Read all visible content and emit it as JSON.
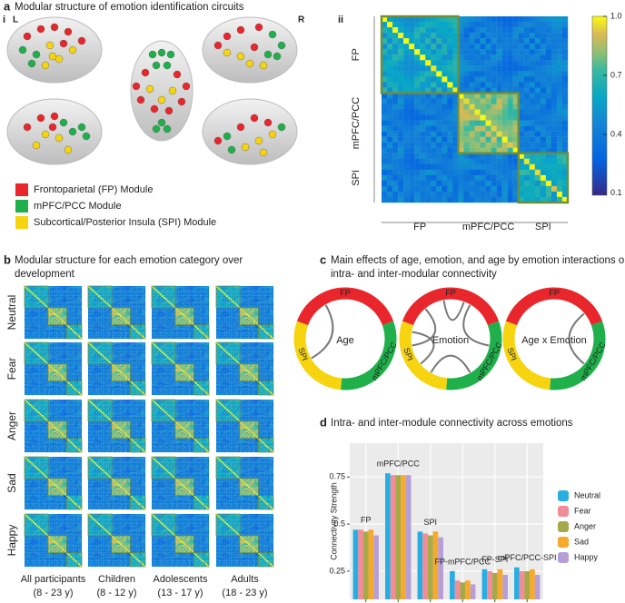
{
  "panel_a": {
    "letter": "a",
    "title": "Modular structure of emotion identification circuits",
    "sub_i": "i",
    "left": "L",
    "right": "R",
    "sub_ii": "ii",
    "legend": [
      "Frontoparietal (FP) Module",
      "mPFC/PCC Module",
      "Subcortical/Posterior Insula (SPI) Module"
    ],
    "modules": [
      "FP",
      "mPFC/PCC",
      "SPI"
    ],
    "colorbar": {
      "lim": [
        0.09,
        1
      ],
      "ticks": [
        {
          "value": 1,
          "label": "1.0"
        },
        0.7,
        0.4,
        0.1
      ]
    }
  },
  "panel_b": {
    "letter": "b",
    "title_lines": [
      "Modular structure for each emotion category over",
      "development"
    ],
    "rows": [
      "Neutral",
      "Fear",
      "Anger",
      "Sad",
      "Happy"
    ],
    "columns": [
      [
        "All participants",
        "(8 - 23 y)"
      ],
      [
        "Children",
        "(8 - 12 y)"
      ],
      [
        "Adolescents",
        "(13 - 17 y)"
      ],
      [
        "Adults",
        "(18 - 23 y)"
      ]
    ]
  },
  "panel_c": {
    "letter": "c",
    "title_lines": [
      "Main effects of age, emotion, and age by emotion interactions on",
      "intra- and inter-modular connectivity"
    ],
    "modules": [
      "FP",
      "mPFC/PCC",
      "SPI"
    ],
    "circles": [
      "Age",
      "Emotion",
      "Age x Emotion"
    ]
  },
  "chart_data": {
    "type": "bar",
    "panel_letter": "d",
    "title": "Intra- and inter-module connectivity across emotions",
    "y_label": "Connectivity Strength",
    "categories": [
      "FP",
      "mPFC/PCC",
      "SPI",
      "FP-mPFC/PCC",
      "FP-SPI",
      "mPFC/PCC-SPI"
    ],
    "series": [
      {
        "name": "Neutral",
        "color": "#29aee3",
        "values": [
          0.47,
          0.77,
          0.46,
          0.25,
          0.26,
          0.27
        ]
      },
      {
        "name": "Fear",
        "color": "#f28c98",
        "values": [
          0.47,
          0.76,
          0.45,
          0.2,
          0.25,
          0.25
        ]
      },
      {
        "name": "Anger",
        "color": "#a5a94a",
        "values": [
          0.46,
          0.76,
          0.44,
          0.19,
          0.24,
          0.25
        ]
      },
      {
        "name": "Sad",
        "color": "#f6a92a",
        "values": [
          0.47,
          0.76,
          0.46,
          0.2,
          0.26,
          0.26
        ]
      },
      {
        "name": "Happy",
        "color": "#b59fd6",
        "values": [
          0.44,
          0.76,
          0.43,
          0.18,
          0.23,
          0.23
        ]
      }
    ],
    "ylim": [
      0.1,
      0.93
    ],
    "yticks": [
      0.25,
      0.5,
      0.75
    ],
    "grid": true
  }
}
